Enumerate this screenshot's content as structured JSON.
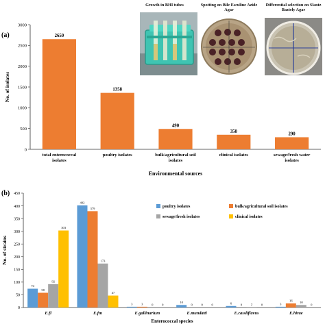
{
  "chart_data": [
    {
      "panel_label": "(a)",
      "type": "bar",
      "categories": [
        "total enterococcal isolates",
        "poultry isolates",
        "bulk/agricultural soil isolates",
        "clinical isolates",
        "sewage/fresh water isolates"
      ],
      "values": [
        2650,
        1358,
        490,
        350,
        290
      ],
      "data_labels": [
        "2650",
        "1358",
        "490",
        "350",
        "290"
      ],
      "xlabel": "Environmental sources",
      "ylabel": "No. of isolates",
      "ylim": [
        0,
        3000
      ],
      "yticks": [
        0,
        500,
        1000,
        1500,
        2000,
        2500,
        3000
      ],
      "grid": false,
      "colors": {
        "bar": "#ED7D31"
      }
    },
    {
      "panel_label": "(b)",
      "type": "bar",
      "categories": [
        "E.fl",
        "E.fm",
        "E.gallinarium",
        "E.mundatti",
        "E.cassliflavus",
        "E.hirae"
      ],
      "series": [
        {
          "name": "poultry isolates",
          "color": "#5B9BD5",
          "values": [
            74,
            402,
            3,
            10,
            6,
            3
          ],
          "labels": [
            "74",
            "402",
            "3",
            "10",
            "6",
            "3"
          ]
        },
        {
          "name": "bulk/agricultural soil isolates",
          "color": "#ED7D31",
          "values": [
            58,
            379,
            3,
            0,
            0,
            16
          ],
          "labels": [
            "58",
            "379",
            "3",
            "0",
            "0",
            "16"
          ]
        },
        {
          "name": "sewage/fresh isolates",
          "color": "#A5A5A5",
          "values": [
            92,
            173,
            0,
            0,
            2,
            10
          ],
          "labels": [
            "92",
            "173",
            "0",
            "0",
            "2",
            "10"
          ]
        },
        {
          "name": "clinical isolates",
          "color": "#FFC000",
          "values": [
            303,
            47,
            0,
            0,
            0,
            0
          ],
          "labels": [
            "303",
            "47",
            "0",
            "0",
            "0",
            "0"
          ]
        }
      ],
      "xlabel": "Enterococcal species",
      "ylabel": "No. of strains",
      "ylim": [
        0,
        450
      ],
      "yticks": [
        0,
        50,
        100,
        150,
        200,
        250,
        300,
        350,
        400,
        450
      ],
      "grid": false,
      "legend": "upper-right"
    }
  ],
  "photos": {
    "captions": [
      "Growth in BHI tubes",
      "Spotting on Bile Esculine Azide Agar",
      "Differential selection on Slantz Baztely Agar"
    ],
    "subjects": [
      "tube-rack",
      "spotted-petri-dish",
      "streaked-petri-dish"
    ]
  }
}
